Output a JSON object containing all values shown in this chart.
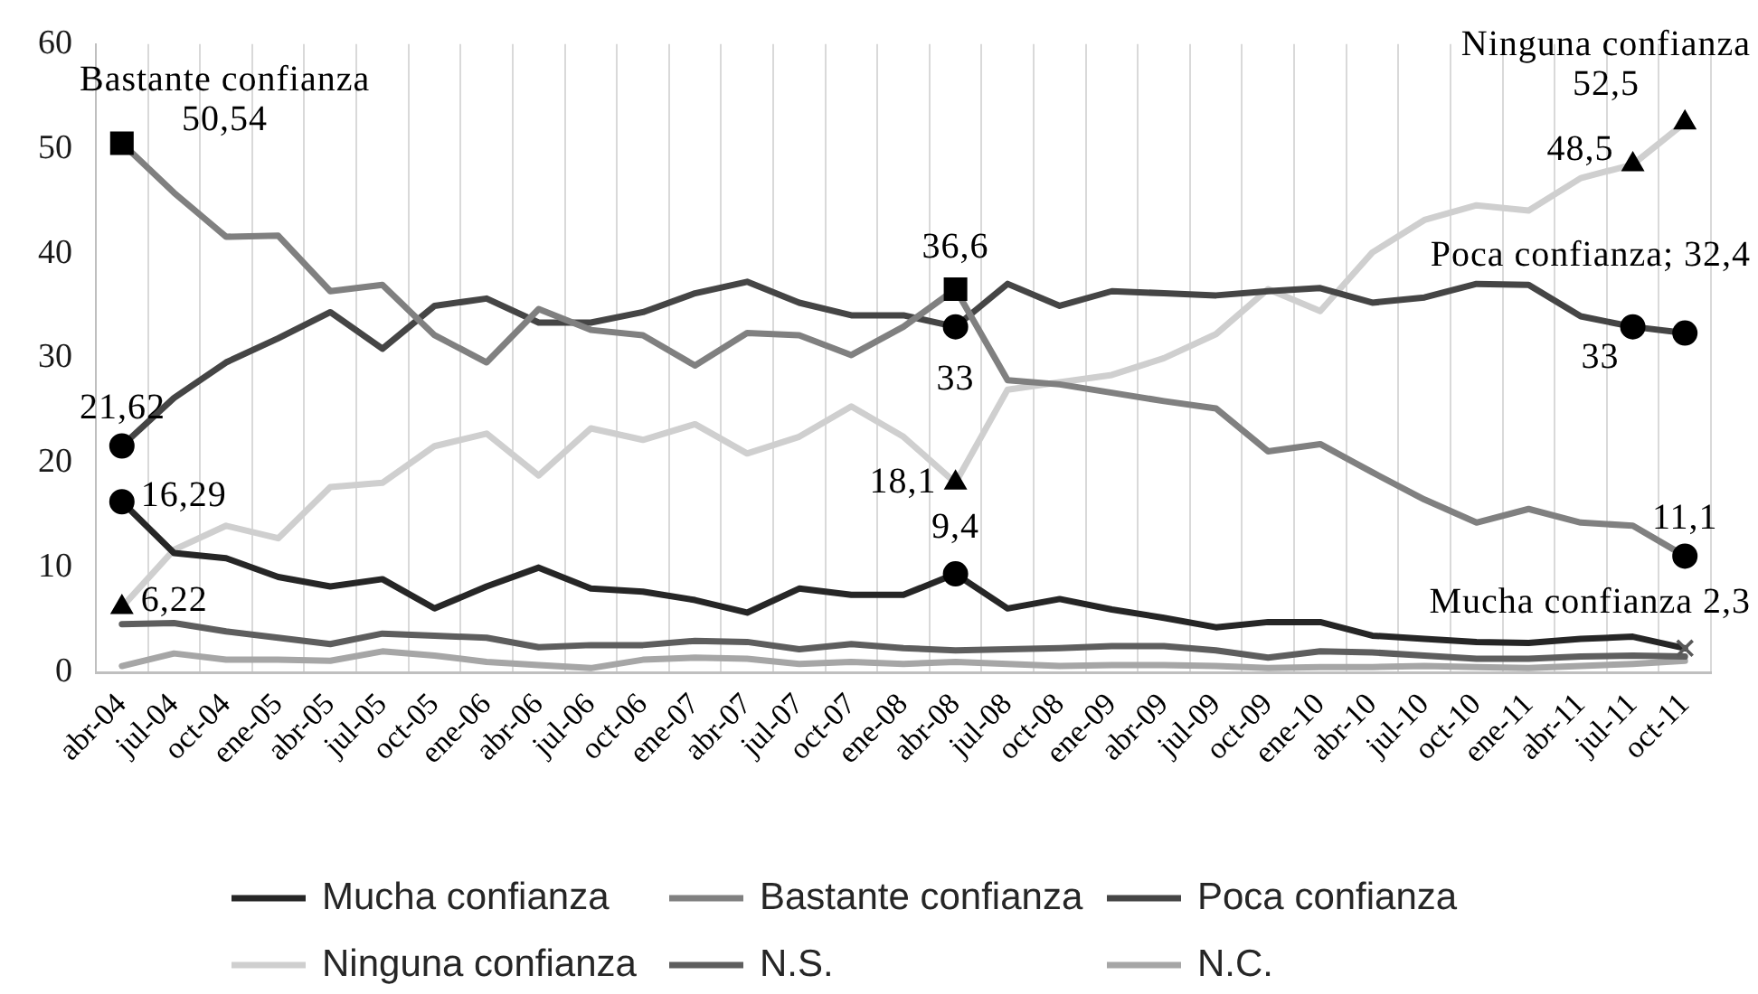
{
  "chart_data": {
    "type": "line",
    "categories": [
      "abr-04",
      "jul-04",
      "oct-04",
      "ene-05",
      "abr-05",
      "jul-05",
      "oct-05",
      "ene-06",
      "abr-06",
      "jul-06",
      "oct-06",
      "ene-07",
      "abr-07",
      "jul-07",
      "oct-07",
      "ene-08",
      "abr-08",
      "jul-08",
      "oct-08",
      "ene-09",
      "abr-09",
      "jul-09",
      "oct-09",
      "ene-10",
      "abr-10",
      "jul-10",
      "oct-10",
      "ene-11",
      "abr-11",
      "jul-11",
      "oct-11"
    ],
    "series": [
      {
        "name": "Mucha confianza",
        "color": "#262626",
        "values": [
          16.29,
          11.4,
          10.9,
          9.1,
          8.2,
          8.9,
          6.1,
          8.2,
          10.0,
          8.0,
          7.7,
          6.9,
          5.7,
          8.0,
          7.4,
          7.4,
          9.4,
          6.1,
          7.0,
          6.0,
          5.2,
          4.3,
          4.8,
          4.8,
          3.5,
          3.2,
          2.9,
          2.8,
          3.2,
          3.4,
          2.3
        ]
      },
      {
        "name": "Bastante confianza",
        "color": "#808080",
        "values": [
          50.54,
          45.8,
          41.6,
          41.7,
          36.4,
          37.0,
          32.2,
          29.6,
          34.7,
          32.7,
          32.2,
          29.3,
          32.4,
          32.2,
          30.3,
          33.0,
          36.6,
          27.9,
          27.5,
          26.7,
          25.9,
          25.2,
          21.1,
          21.8,
          19.1,
          16.5,
          14.3,
          15.6,
          14.3,
          14.0,
          11.1
        ]
      },
      {
        "name": "Poca confianza",
        "color": "#454545",
        "values": [
          21.62,
          26.2,
          29.6,
          31.9,
          34.4,
          30.9,
          35.0,
          35.7,
          33.4,
          33.4,
          34.4,
          36.2,
          37.3,
          35.3,
          34.1,
          34.1,
          33,
          37.1,
          35.0,
          36.4,
          36.2,
          36.0,
          36.4,
          36.7,
          35.3,
          35.8,
          37.1,
          37.0,
          34.0,
          33,
          32.4
        ]
      },
      {
        "name": "Ninguna confianza",
        "color": "#cfcfcf",
        "values": [
          6.22,
          11.7,
          14.0,
          12.8,
          17.7,
          18.1,
          21.6,
          22.8,
          18.8,
          23.3,
          22.2,
          23.7,
          20.9,
          22.5,
          25.4,
          22.5,
          18.1,
          27.0,
          27.7,
          28.4,
          30.0,
          32.3,
          36.6,
          34.5,
          40.1,
          43.2,
          44.6,
          44.1,
          47.2,
          48.5,
          52.5
        ]
      },
      {
        "name": "N.S.",
        "color": "#5e5e5e",
        "values": [
          4.6,
          4.7,
          3.9,
          3.3,
          2.7,
          3.7,
          3.5,
          3.3,
          2.4,
          2.6,
          2.6,
          3.0,
          2.9,
          2.2,
          2.7,
          2.3,
          2.1,
          2.2,
          2.3,
          2.5,
          2.5,
          2.1,
          1.4,
          2.0,
          1.9,
          1.6,
          1.3,
          1.3,
          1.5,
          1.6,
          1.5
        ]
      },
      {
        "name": "N.C.",
        "color": "#a6a6a6",
        "values": [
          0.6,
          1.8,
          1.2,
          1.2,
          1.1,
          2.0,
          1.6,
          1.0,
          0.7,
          0.4,
          1.2,
          1.4,
          1.3,
          0.8,
          1.0,
          0.8,
          1.0,
          0.8,
          0.6,
          0.7,
          0.7,
          0.6,
          0.4,
          0.5,
          0.5,
          0.6,
          0.5,
          0.4,
          0.6,
          0.8,
          1.1
        ]
      },
      {
        "type": "scatter",
        "marker": "square",
        "color": "#000000",
        "x": [
          "abr-04",
          "abr-08"
        ],
        "values": [
          50.54,
          36.6
        ],
        "value_labels": [
          "50,54",
          "36,6"
        ]
      },
      {
        "type": "scatter",
        "marker": "circle",
        "color": "#000000",
        "x": [
          "abr-04",
          "abr-04",
          "abr-08",
          "abr-08",
          "jul-11",
          "oct-11",
          "oct-11"
        ],
        "values": [
          21.62,
          16.29,
          33,
          9.4,
          33,
          32.4,
          11.1
        ],
        "value_labels": [
          "21,62",
          "16,29",
          "33",
          "9,4",
          "33",
          "Poca confianza; 32,4",
          "11,1"
        ]
      },
      {
        "type": "scatter",
        "marker": "triangle",
        "color": "#000000",
        "x": [
          "abr-04",
          "abr-08",
          "jul-11",
          "oct-11"
        ],
        "values": [
          6.22,
          18.1,
          48.5,
          52.5
        ],
        "value_labels": [
          "6,22",
          "18,1",
          "48,5",
          "52,5"
        ]
      },
      {
        "type": "scatter",
        "marker": "cross",
        "color": "#595959",
        "x": [
          "oct-11"
        ],
        "values": [
          2.3
        ],
        "value_labels": [
          "Mucha confianza 2,3"
        ]
      }
    ],
    "annotations": [
      {
        "text": "Bastante confianza",
        "x": "abr-04",
        "y": 50.54
      },
      {
        "text": "Ninguna confianza",
        "x": "oct-11",
        "y": 52.5
      }
    ],
    "ylim": [
      0,
      60
    ],
    "yticks": [
      0,
      10,
      20,
      30,
      40,
      50,
      60
    ],
    "grid": "x",
    "legend": "bottom"
  }
}
